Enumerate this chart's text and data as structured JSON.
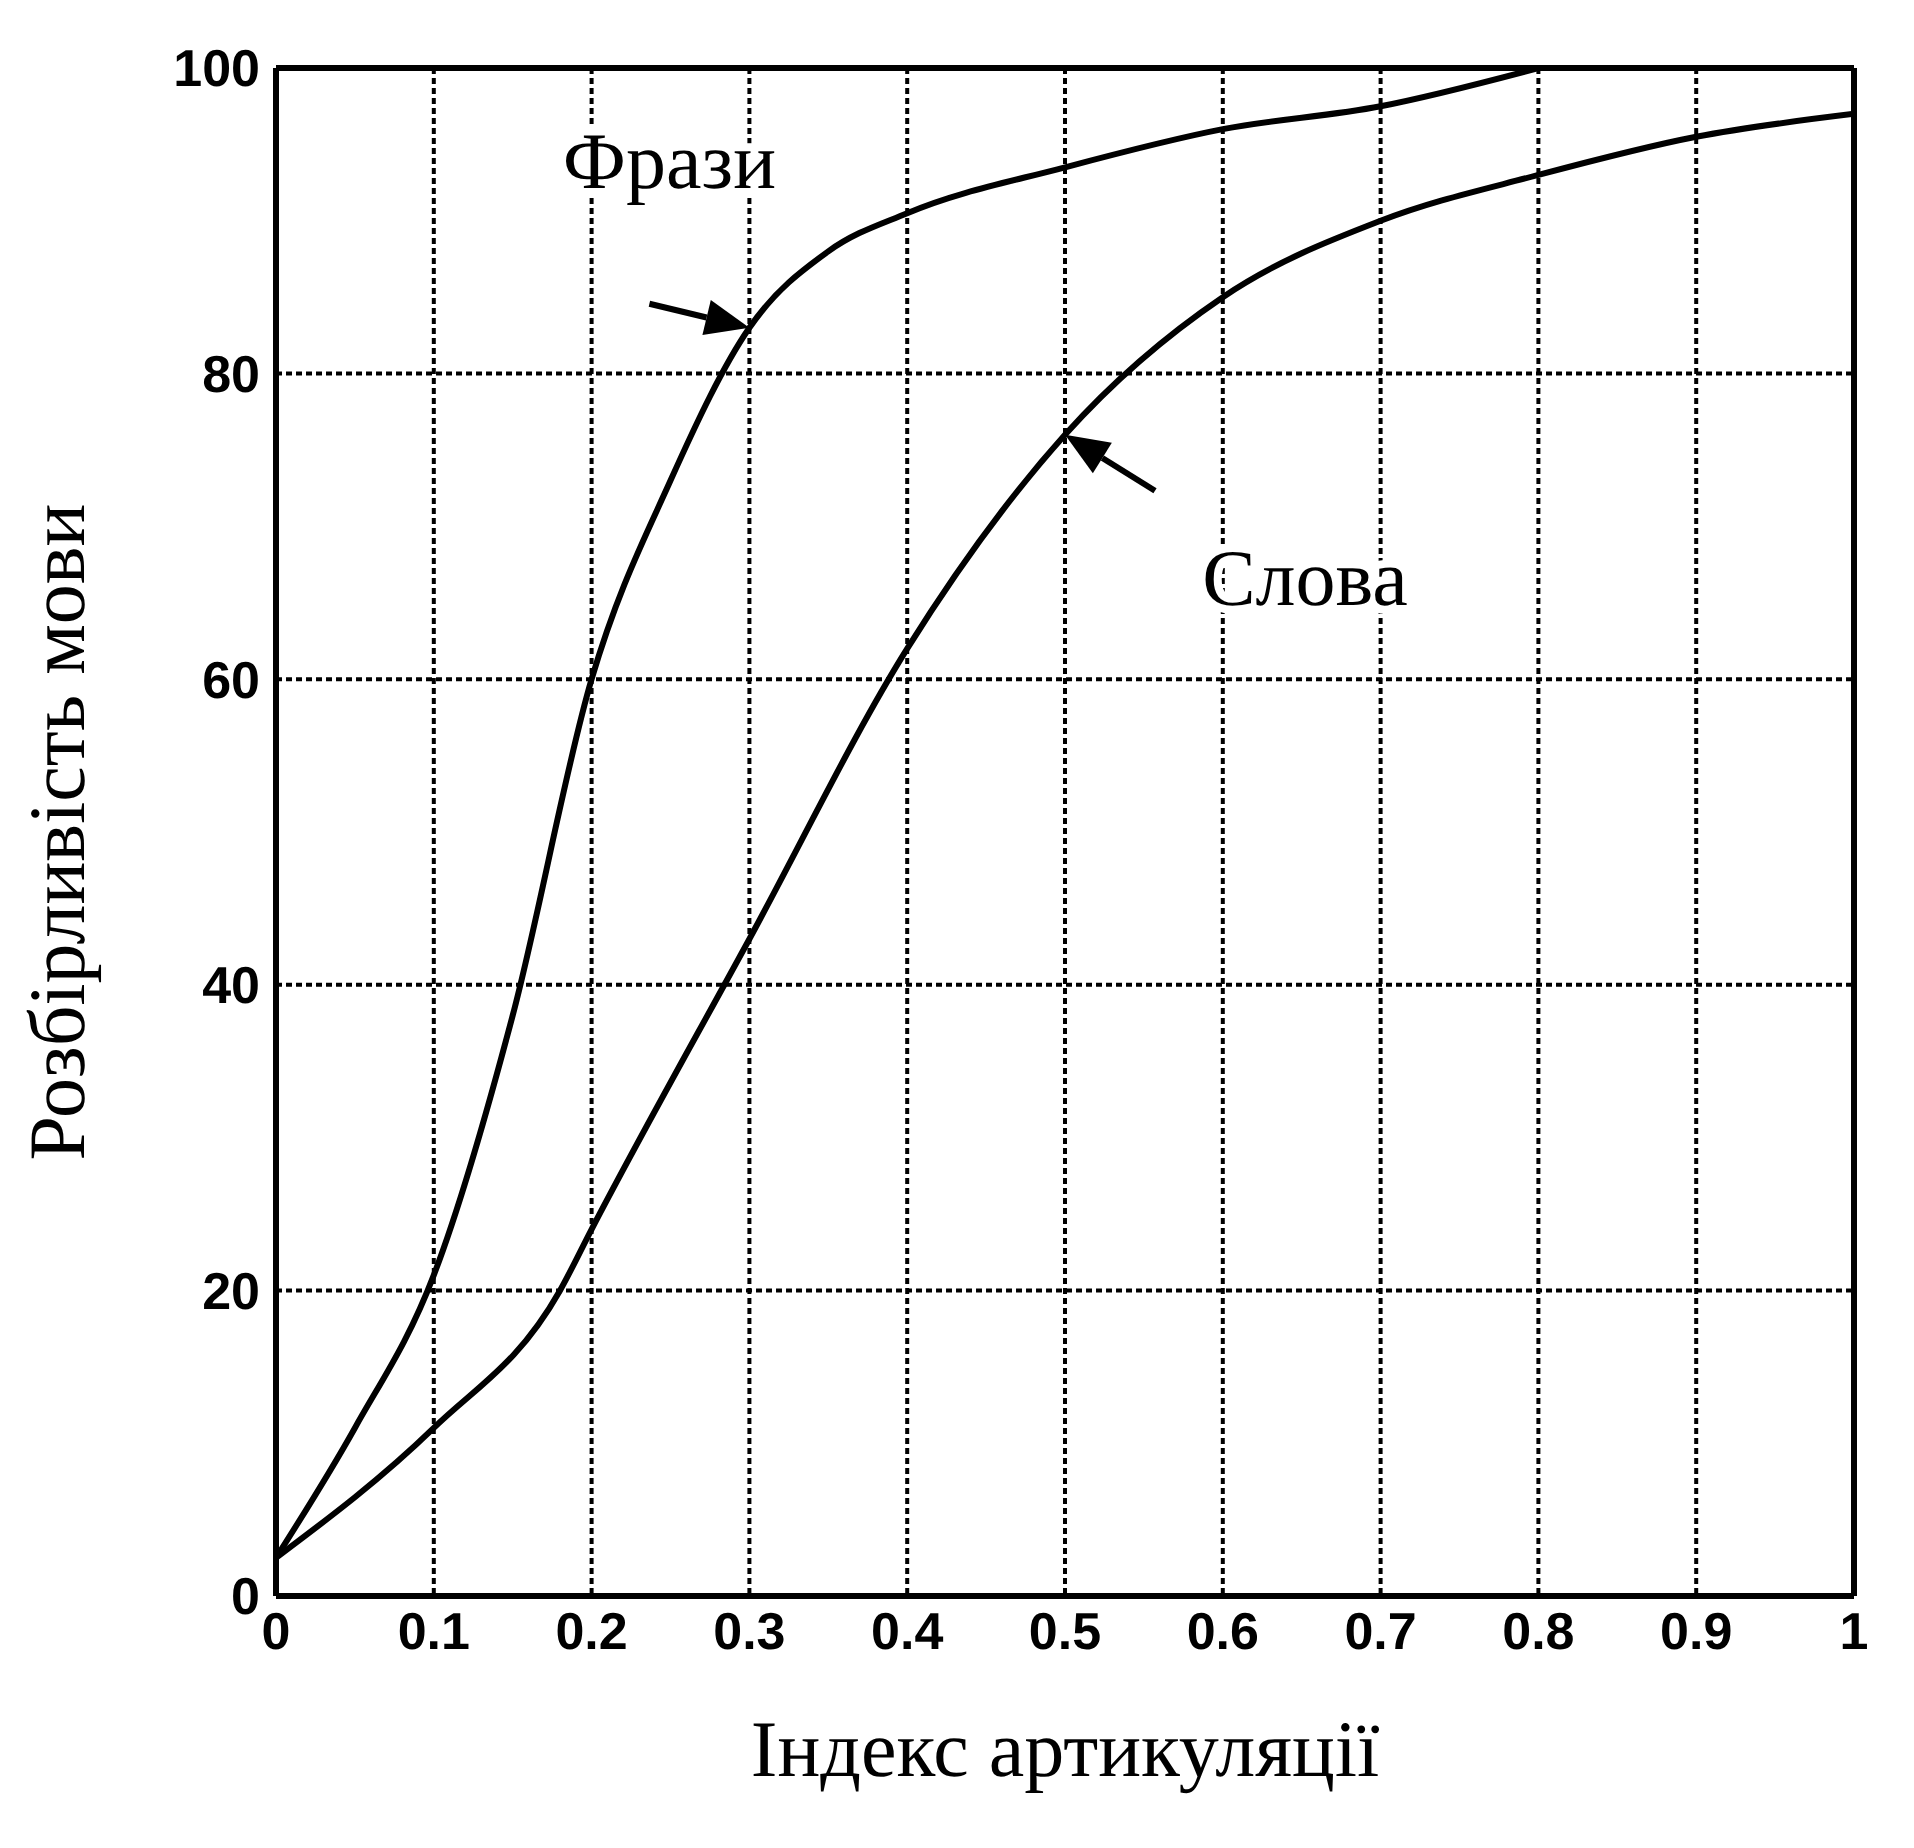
{
  "chart_data": {
    "type": "line",
    "xlabel": "Індекс артикуляції",
    "ylabel": "Розбірливість мови",
    "xlim": [
      0,
      1
    ],
    "ylim": [
      0,
      100
    ],
    "xticks": [
      0,
      0.1,
      0.2,
      0.3,
      0.4,
      0.5,
      0.6,
      0.7,
      0.8,
      0.9,
      1
    ],
    "yticks": [
      0,
      20,
      40,
      60,
      80,
      100
    ],
    "grid": true,
    "marker": "none",
    "line_style": "solid",
    "series": [
      {
        "name": "Фрази",
        "color": "#000000",
        "x": [
          0,
          0.05,
          0.1,
          0.15,
          0.2,
          0.25,
          0.3,
          0.35,
          0.4,
          0.5,
          0.6,
          0.7,
          0.8
        ],
        "values": [
          2.5,
          11,
          21,
          38,
          60,
          73,
          83,
          88,
          90.5,
          93.5,
          96,
          97.5,
          100
        ]
      },
      {
        "name": "Слова",
        "color": "#000000",
        "x": [
          0,
          0.1,
          0.18,
          0.2,
          0.3,
          0.4,
          0.5,
          0.6,
          0.7,
          0.8,
          0.9,
          1
        ],
        "values": [
          2.5,
          11,
          20,
          24,
          43,
          62,
          76,
          85,
          90,
          93,
          95.5,
          97
        ]
      }
    ]
  }
}
